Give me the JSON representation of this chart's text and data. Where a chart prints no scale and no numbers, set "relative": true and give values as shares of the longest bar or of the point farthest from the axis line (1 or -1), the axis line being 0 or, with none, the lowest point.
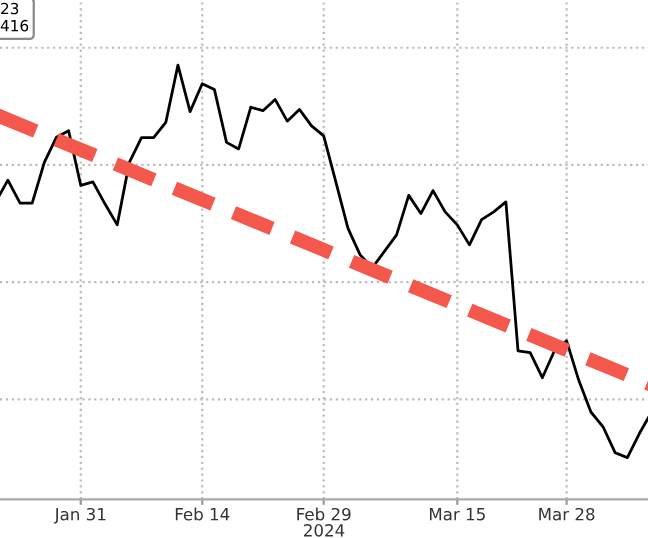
{
  "chart_data": {
    "type": "line",
    "xlabel": "2024",
    "relative": true,
    "grid": true,
    "tick_labels": "x",
    "legend": false,
    "annotations": [
      "23\n416"
    ],
    "categories": [
      null,
      null,
      null,
      null,
      null,
      null,
      null,
      "Jan 31",
      null,
      null,
      null,
      null,
      null,
      null,
      null,
      null,
      null,
      "Feb 14",
      null,
      null,
      null,
      null,
      null,
      null,
      null,
      null,
      null,
      "Feb 29",
      null,
      null,
      null,
      null,
      null,
      null,
      null,
      null,
      null,
      null,
      "Mar 15",
      null,
      null,
      null,
      null,
      null,
      null,
      null,
      null,
      "Mar 28",
      null,
      null,
      null,
      null,
      null,
      null,
      null
    ],
    "series": [
      {
        "color": "#000000",
        "line_style": "solid",
        "values": [
          0.685,
          0.735,
          0.682,
          0.682,
          0.776,
          0.834,
          0.849,
          0.723,
          0.731,
          0.68,
          0.632,
          0.776,
          0.833,
          0.833,
          0.868,
          1.0,
          0.893,
          0.957,
          0.944,
          0.822,
          0.807,
          0.903,
          0.895,
          0.921,
          0.871,
          0.898,
          0.86,
          0.837,
          0.731,
          0.624,
          0.563,
          0.533,
          0.571,
          0.609,
          0.7,
          0.658,
          0.711,
          0.662,
          0.632,
          0.586,
          0.644,
          0.662,
          0.685,
          0.342,
          0.338,
          0.28,
          0.342,
          0.365,
          0.274,
          0.201,
          0.167,
          0.107,
          0.096,
          0.152,
          0.201
        ]
      },
      {
        "color": "#f4574b",
        "line_style": "dashed",
        "values": [
          0.886,
          null,
          null,
          null,
          null,
          null,
          null,
          null,
          null,
          null,
          null,
          null,
          null,
          null,
          null,
          null,
          null,
          null,
          null,
          null,
          null,
          null,
          null,
          null,
          null,
          null,
          null,
          null,
          null,
          null,
          null,
          null,
          null,
          null,
          null,
          null,
          null,
          null,
          null,
          null,
          null,
          null,
          null,
          null,
          null,
          null,
          null,
          null,
          null,
          null,
          null,
          null,
          null,
          null,
          0.263
        ]
      }
    ]
  }
}
